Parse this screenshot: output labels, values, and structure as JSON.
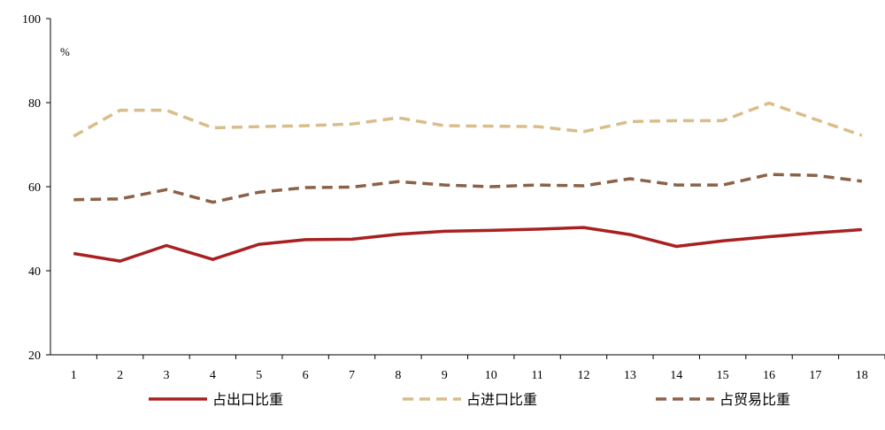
{
  "chart_data": {
    "type": "line",
    "x": [
      1,
      2,
      3,
      4,
      5,
      6,
      7,
      8,
      9,
      10,
      11,
      12,
      13,
      14,
      15,
      16,
      17,
      18
    ],
    "ylim": [
      20,
      100
    ],
    "yticks": [
      20,
      40,
      60,
      80,
      100
    ],
    "unit_label": "%",
    "grid": false,
    "legend_position": "bottom",
    "series": [
      {
        "name": "占出口比重",
        "color": "#a82020",
        "dash": "solid",
        "values": [
          44.1,
          42.3,
          46.0,
          42.7,
          46.3,
          47.4,
          47.5,
          48.7,
          49.4,
          49.6,
          49.9,
          50.3,
          48.6,
          45.8,
          47.1,
          48.1,
          49.0,
          49.8
        ]
      },
      {
        "name": "占进口比重",
        "color": "#d9bd8a",
        "dash": "dashed",
        "values": [
          72.0,
          78.2,
          78.2,
          74.0,
          74.3,
          74.5,
          74.9,
          76.4,
          74.5,
          74.4,
          74.3,
          73.1,
          75.5,
          75.7,
          75.7,
          79.9,
          76.0,
          72.2
        ]
      },
      {
        "name": "占贸易比重",
        "color": "#8b6248",
        "dash": "dashed",
        "values": [
          56.9,
          57.1,
          59.3,
          56.3,
          58.7,
          59.8,
          59.9,
          61.2,
          60.4,
          60.0,
          60.4,
          60.2,
          61.9,
          60.4,
          60.4,
          62.9,
          62.7,
          61.3
        ]
      }
    ]
  }
}
